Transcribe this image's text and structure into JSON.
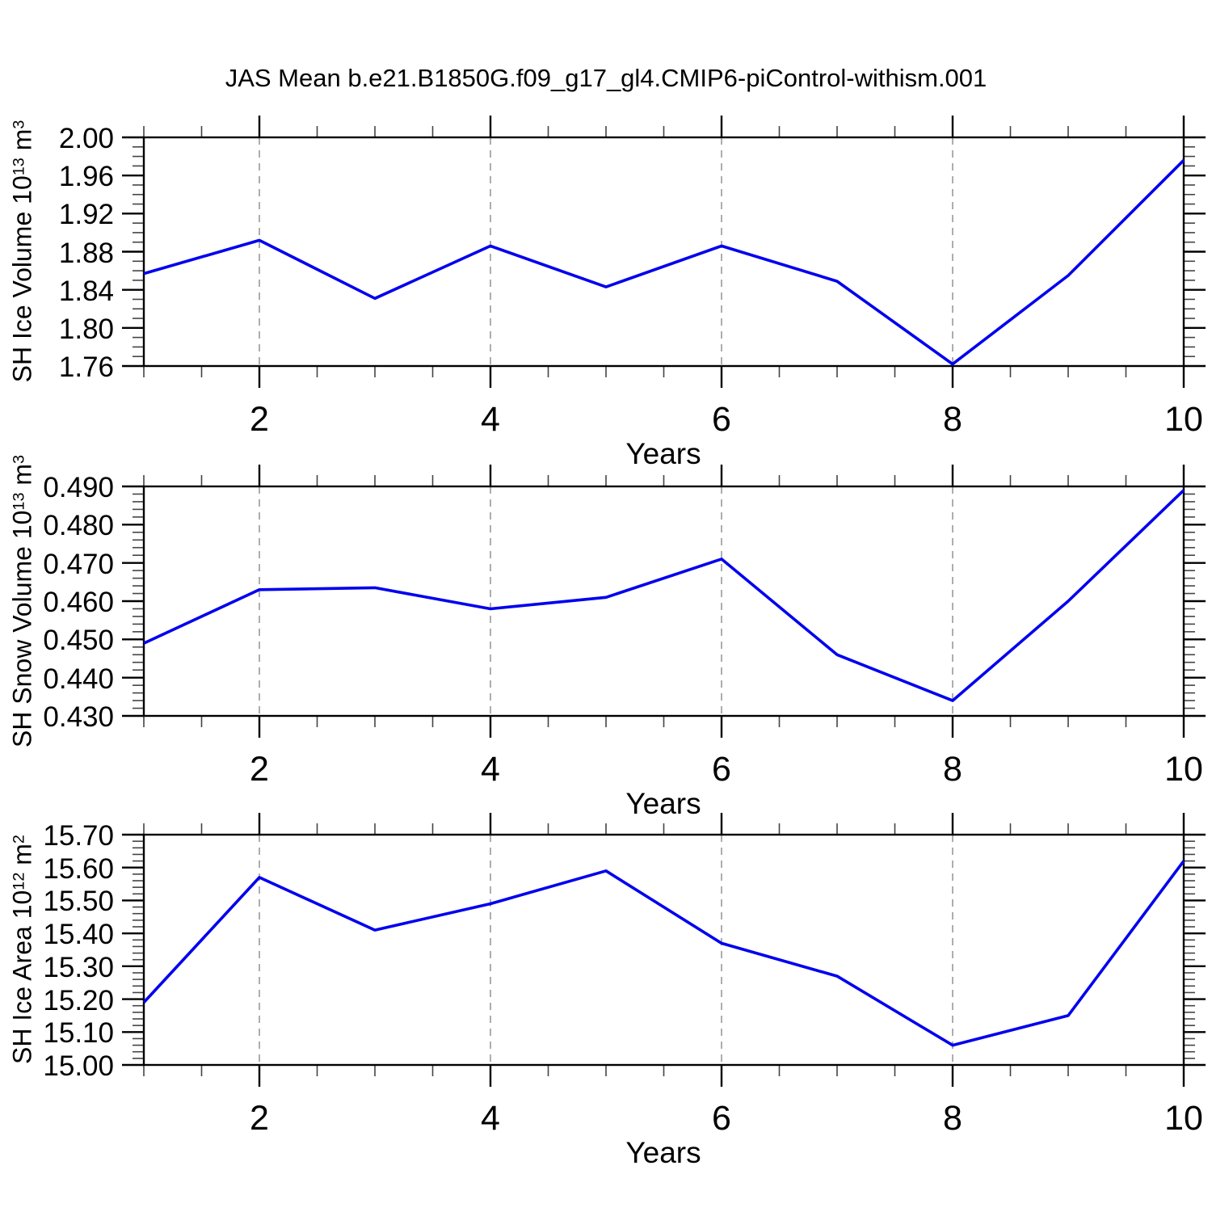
{
  "figure": {
    "title": "JAS Mean b.e21.B1850G.f09_g17_gl4.CMIP6-piControl-withism.001",
    "background": "#ffffff",
    "line_color": "#0000ee",
    "axis_color": "#000000",
    "grid_color": "#999999",
    "minor_tick_color": "#444444"
  },
  "chart_data": [
    {
      "type": "line",
      "xlabel": "Years",
      "ylabel": "SH Ice Volume 10^13 m^3",
      "ylabel_parts": {
        "base": "SH Ice Volume 10",
        "sup1": "13",
        "mid": " m",
        "sup2": "3"
      },
      "x": [
        1,
        2,
        3,
        4,
        5,
        6,
        7,
        8,
        9,
        10
      ],
      "values": [
        1.857,
        1.892,
        1.831,
        1.886,
        1.843,
        1.886,
        1.849,
        1.762,
        1.855,
        1.976
      ],
      "xlim": [
        1,
        10
      ],
      "ylim": [
        1.76,
        2.0
      ],
      "yticks": [
        1.76,
        1.8,
        1.84,
        1.88,
        1.92,
        1.96,
        2.0
      ],
      "ytick_labels": [
        "1.76",
        "1.80",
        "1.84",
        "1.88",
        "1.92",
        "1.96",
        "2.00"
      ],
      "y_minor_step": 0.01,
      "xticks": [
        2,
        4,
        6,
        8,
        10
      ],
      "xtick_labels": [
        "2",
        "4",
        "6",
        "8",
        "10"
      ],
      "x_minor_step": 0.5,
      "gridlines_x": [
        2,
        4,
        6,
        8
      ],
      "grid": "vertical-dashed",
      "legend": "none"
    },
    {
      "type": "line",
      "xlabel": "Years",
      "ylabel": "SH Snow Volume 10^13 m^3",
      "ylabel_parts": {
        "base": "SH Snow Volume 10",
        "sup1": "13",
        "mid": " m",
        "sup2": "3"
      },
      "x": [
        1,
        2,
        3,
        4,
        5,
        6,
        7,
        8,
        9,
        10
      ],
      "values": [
        0.449,
        0.463,
        0.4635,
        0.458,
        0.461,
        0.471,
        0.446,
        0.434,
        0.46,
        0.489
      ],
      "xlim": [
        1,
        10
      ],
      "ylim": [
        0.43,
        0.49
      ],
      "yticks": [
        0.43,
        0.44,
        0.45,
        0.46,
        0.47,
        0.48,
        0.49
      ],
      "ytick_labels": [
        "0.430",
        "0.440",
        "0.450",
        "0.460",
        "0.470",
        "0.480",
        "0.490"
      ],
      "y_minor_step": 0.002,
      "xticks": [
        2,
        4,
        6,
        8,
        10
      ],
      "xtick_labels": [
        "2",
        "4",
        "6",
        "8",
        "10"
      ],
      "x_minor_step": 0.5,
      "gridlines_x": [
        2,
        4,
        6,
        8
      ],
      "grid": "vertical-dashed",
      "legend": "none"
    },
    {
      "type": "line",
      "xlabel": "Years",
      "ylabel": "SH Ice Area 10^12 m^2",
      "ylabel_parts": {
        "base": "SH Ice Area 10",
        "sup1": "12",
        "mid": " m",
        "sup2": "2"
      },
      "x": [
        1,
        2,
        3,
        4,
        5,
        6,
        7,
        8,
        9,
        10
      ],
      "values": [
        15.19,
        15.57,
        15.41,
        15.49,
        15.59,
        15.37,
        15.27,
        15.06,
        15.15,
        15.62
      ],
      "xlim": [
        1,
        10
      ],
      "ylim": [
        15.0,
        15.7
      ],
      "yticks": [
        15.0,
        15.1,
        15.2,
        15.3,
        15.4,
        15.5,
        15.6,
        15.7
      ],
      "ytick_labels": [
        "15.00",
        "15.10",
        "15.20",
        "15.30",
        "15.40",
        "15.50",
        "15.60",
        "15.70"
      ],
      "y_minor_step": 0.02,
      "xticks": [
        2,
        4,
        6,
        8,
        10
      ],
      "xtick_labels": [
        "2",
        "4",
        "6",
        "8",
        "10"
      ],
      "x_minor_step": 0.5,
      "gridlines_x": [
        2,
        4,
        6,
        8
      ],
      "grid": "vertical-dashed",
      "legend": "none"
    }
  ]
}
